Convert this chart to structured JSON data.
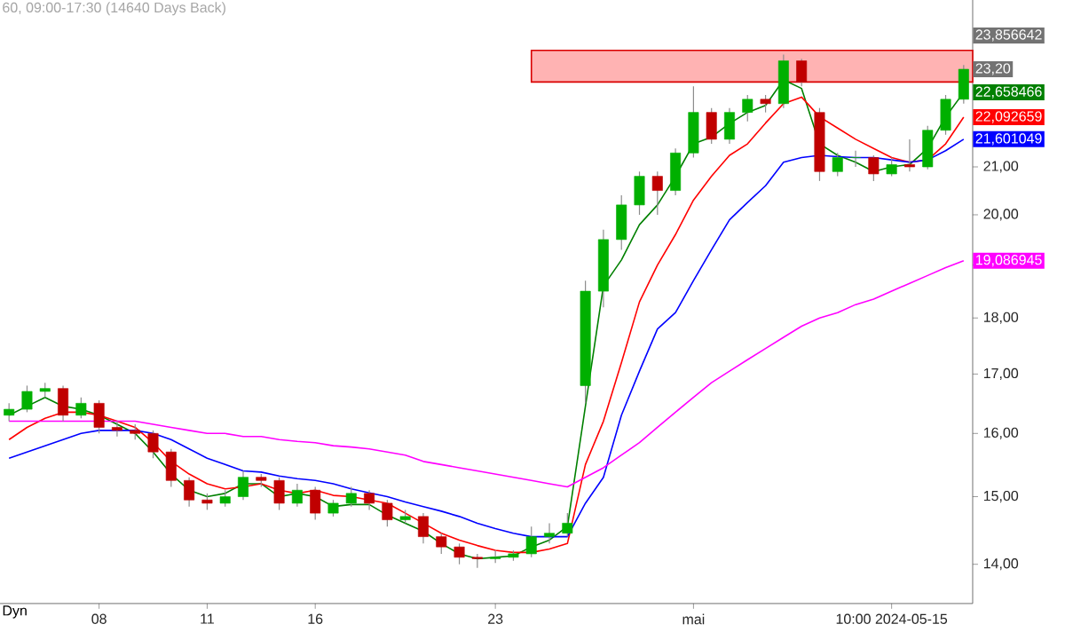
{
  "chart_data": {
    "type": "candlestick",
    "title": "60, 09:00-17:30 (14640 Days Back)",
    "categories": [
      null,
      null,
      null,
      null,
      null,
      "08",
      null,
      null,
      null,
      null,
      null,
      "11",
      null,
      null,
      null,
      null,
      null,
      "16",
      null,
      null,
      null,
      null,
      null,
      null,
      null,
      null,
      null,
      "23",
      null,
      null,
      null,
      null,
      null,
      null,
      null,
      null,
      null,
      null,
      "mai",
      null,
      null,
      null,
      null,
      null,
      null,
      null,
      null,
      null,
      null,
      "10:00 2024-05-15",
      null,
      null,
      null,
      null
    ],
    "ohlc": [
      [
        16.3,
        16.5,
        16.2,
        16.4
      ],
      [
        16.4,
        16.8,
        16.35,
        16.7
      ],
      [
        16.7,
        16.85,
        16.6,
        16.75
      ],
      [
        16.75,
        16.8,
        16.2,
        16.3
      ],
      [
        16.3,
        16.6,
        16.25,
        16.5
      ],
      [
        16.5,
        16.55,
        16.0,
        16.1
      ],
      [
        16.1,
        16.2,
        15.95,
        16.05
      ],
      [
        16.05,
        16.15,
        15.9,
        16.0
      ],
      [
        16.0,
        16.05,
        15.6,
        15.7
      ],
      [
        15.7,
        15.75,
        15.15,
        15.25
      ],
      [
        15.25,
        15.3,
        14.85,
        14.95
      ],
      [
        14.95,
        15.05,
        14.8,
        14.9
      ],
      [
        14.9,
        15.1,
        14.85,
        15.0
      ],
      [
        15.0,
        15.4,
        14.95,
        15.3
      ],
      [
        15.3,
        15.35,
        15.15,
        15.25
      ],
      [
        15.25,
        15.3,
        14.8,
        14.9
      ],
      [
        14.9,
        15.2,
        14.85,
        15.1
      ],
      [
        15.1,
        15.15,
        14.65,
        14.75
      ],
      [
        14.75,
        14.95,
        14.7,
        14.9
      ],
      [
        14.9,
        15.15,
        14.85,
        15.05
      ],
      [
        15.05,
        15.1,
        14.8,
        14.9
      ],
      [
        14.9,
        14.95,
        14.55,
        14.65
      ],
      [
        14.65,
        14.8,
        14.6,
        14.7
      ],
      [
        14.7,
        14.75,
        14.3,
        14.4
      ],
      [
        14.4,
        14.45,
        14.15,
        14.25
      ],
      [
        14.25,
        14.3,
        14.0,
        14.1
      ],
      [
        14.1,
        14.15,
        13.95,
        14.08
      ],
      [
        14.08,
        14.2,
        14.02,
        14.1
      ],
      [
        14.1,
        14.2,
        14.05,
        14.15
      ],
      [
        14.15,
        14.55,
        14.1,
        14.4
      ],
      [
        14.4,
        14.6,
        14.3,
        14.45
      ],
      [
        14.45,
        14.75,
        14.4,
        14.6
      ],
      [
        16.8,
        18.7,
        16.5,
        18.5
      ],
      [
        18.5,
        19.7,
        18.2,
        19.5
      ],
      [
        19.5,
        20.4,
        19.3,
        20.2
      ],
      [
        20.2,
        20.9,
        20.0,
        20.8
      ],
      [
        20.8,
        20.9,
        20.0,
        20.5
      ],
      [
        20.5,
        21.4,
        20.4,
        21.3
      ],
      [
        21.3,
        22.8,
        21.2,
        22.2
      ],
      [
        22.2,
        22.3,
        21.5,
        21.6
      ],
      [
        21.6,
        22.3,
        21.5,
        22.2
      ],
      [
        22.2,
        22.6,
        22.0,
        22.5
      ],
      [
        22.5,
        22.6,
        22.2,
        22.4
      ],
      [
        22.4,
        23.55,
        22.3,
        23.4
      ],
      [
        23.4,
        23.45,
        22.8,
        22.9
      ],
      [
        22.2,
        22.3,
        20.7,
        20.9
      ],
      [
        20.9,
        21.3,
        20.8,
        21.2
      ],
      [
        21.2,
        21.35,
        21.0,
        21.2
      ],
      [
        21.2,
        21.25,
        20.7,
        20.85
      ],
      [
        20.85,
        21.2,
        20.8,
        21.05
      ],
      [
        21.05,
        21.6,
        20.9,
        21.0
      ],
      [
        21.0,
        21.9,
        20.95,
        21.8
      ],
      [
        21.8,
        22.6,
        21.7,
        22.5
      ],
      [
        22.5,
        23.3,
        22.4,
        23.2
      ]
    ],
    "series": [
      {
        "type": "line",
        "color": "#008000",
        "values": [
          16.3,
          16.45,
          16.6,
          16.45,
          16.4,
          16.3,
          16.15,
          16.0,
          15.7,
          15.35,
          15.1,
          15.0,
          15.05,
          15.2,
          15.2,
          15.0,
          15.05,
          15.0,
          14.85,
          14.88,
          14.88,
          14.72,
          14.6,
          14.48,
          14.3,
          14.15,
          14.08,
          14.1,
          14.12,
          14.25,
          14.35,
          14.55,
          null,
          18.6,
          19.1,
          19.8,
          20.2,
          20.8,
          21.5,
          21.65,
          21.95,
          22.2,
          22.36,
          22.95,
          22.75,
          21.5,
          21.25,
          21.1,
          20.9,
          21.0,
          21.05,
          21.4,
          22.1,
          22.658466
        ],
        "value_labels": [
          null,
          null,
          null,
          null,
          null,
          null,
          null,
          null,
          null,
          null,
          null,
          null,
          null,
          null,
          null,
          null,
          null,
          null,
          null,
          null,
          null,
          null,
          null,
          null,
          null,
          null,
          null,
          null,
          null,
          null,
          null,
          null,
          null,
          null,
          null,
          null,
          null,
          null,
          null,
          null,
          null,
          null,
          null,
          null,
          null,
          null,
          null,
          null,
          null,
          null,
          null,
          null,
          null,
          "22,658466"
        ]
      },
      {
        "type": "line",
        "color": "#ff0000",
        "values": [
          15.9,
          16.1,
          16.25,
          16.35,
          16.35,
          16.3,
          16.2,
          16.1,
          15.85,
          15.55,
          15.35,
          15.2,
          15.12,
          15.15,
          15.2,
          15.1,
          15.05,
          15.1,
          15.02,
          15.0,
          14.95,
          14.9,
          14.75,
          14.6,
          14.45,
          14.35,
          14.27,
          14.2,
          14.17,
          14.17,
          14.22,
          14.3,
          15.5,
          16.2,
          17.2,
          18.3,
          19.0,
          19.6,
          20.3,
          20.8,
          21.25,
          21.5,
          21.96,
          22.4,
          22.55,
          22.1,
          21.85,
          21.6,
          21.4,
          21.2,
          21.1,
          21.15,
          21.5,
          22.092659
        ],
        "value_labels": [
          null,
          null,
          null,
          null,
          null,
          null,
          null,
          null,
          null,
          null,
          null,
          null,
          null,
          null,
          null,
          null,
          null,
          null,
          null,
          null,
          null,
          null,
          null,
          null,
          null,
          null,
          null,
          null,
          null,
          null,
          null,
          null,
          null,
          null,
          null,
          null,
          null,
          null,
          null,
          null,
          null,
          null,
          null,
          null,
          null,
          null,
          null,
          null,
          null,
          null,
          null,
          null,
          null,
          "22,092659"
        ]
      },
      {
        "type": "line",
        "color": "#0000ff",
        "values": [
          15.6,
          15.7,
          15.8,
          15.9,
          16.0,
          16.05,
          16.05,
          16.05,
          16.0,
          15.9,
          15.75,
          15.6,
          15.5,
          15.4,
          15.38,
          15.32,
          15.28,
          15.25,
          15.2,
          15.12,
          15.06,
          15.0,
          14.92,
          14.85,
          14.78,
          14.7,
          14.6,
          14.52,
          14.45,
          14.4,
          14.4,
          14.4,
          14.9,
          15.3,
          16.3,
          17.05,
          17.8,
          18.1,
          18.7,
          19.3,
          19.9,
          20.25,
          20.6,
          21.1,
          21.2,
          21.25,
          21.22,
          21.2,
          21.2,
          21.15,
          21.1,
          21.15,
          21.35,
          21.601049
        ],
        "value_labels": [
          null,
          null,
          null,
          null,
          null,
          null,
          null,
          null,
          null,
          null,
          null,
          null,
          null,
          null,
          null,
          null,
          null,
          null,
          null,
          null,
          null,
          null,
          null,
          null,
          null,
          null,
          null,
          null,
          null,
          null,
          null,
          null,
          null,
          null,
          null,
          null,
          null,
          null,
          null,
          null,
          null,
          null,
          null,
          null,
          null,
          null,
          null,
          null,
          null,
          null,
          null,
          null,
          null,
          "21,601049"
        ]
      },
      {
        "type": "line",
        "color": "#ff00ff",
        "values": [
          16.2,
          16.2,
          16.2,
          16.2,
          16.2,
          16.2,
          16.2,
          16.2,
          16.15,
          16.1,
          16.05,
          16.0,
          16.0,
          15.95,
          15.95,
          15.9,
          15.87,
          15.85,
          15.8,
          15.78,
          15.75,
          15.7,
          15.65,
          15.55,
          15.5,
          15.45,
          15.4,
          15.35,
          15.3,
          15.25,
          15.2,
          15.15,
          15.3,
          15.45,
          15.65,
          15.85,
          16.1,
          16.35,
          16.6,
          16.85,
          17.05,
          17.25,
          17.45,
          17.65,
          17.85,
          18.0,
          18.1,
          18.25,
          18.35,
          18.5,
          18.65,
          18.8,
          18.95,
          19.086945
        ],
        "value_labels": [
          null,
          null,
          null,
          null,
          null,
          null,
          null,
          null,
          null,
          null,
          null,
          null,
          null,
          null,
          null,
          null,
          null,
          null,
          null,
          null,
          null,
          null,
          null,
          null,
          null,
          null,
          null,
          null,
          null,
          null,
          null,
          null,
          null,
          null,
          null,
          null,
          null,
          null,
          null,
          null,
          null,
          null,
          null,
          null,
          null,
          null,
          null,
          null,
          null,
          null,
          null,
          null,
          null,
          "19,086945"
        ]
      }
    ],
    "annotations": [
      "23,856642",
      {
        "text": "23,20",
        "y": 23.2
      },
      "Dyn"
    ],
    "bands": [
      {
        "axis": "y",
        "from": 22.9,
        "to": 23.65,
        "color": "#ffb3b3"
      }
    ],
    "log": true,
    "ylim": [
      13.45,
      24.9
    ],
    "yticks": [
      {
        "value": 14,
        "label": "14,00"
      },
      {
        "value": 15,
        "label": "15,00"
      },
      {
        "value": 16,
        "label": "16,00"
      },
      {
        "value": 17,
        "label": "17,00"
      },
      {
        "value": 18,
        "label": "18,00"
      },
      {
        "value": 19,
        "label": null
      },
      {
        "value": 20,
        "label": "20,00"
      },
      {
        "value": 21,
        "label": "21,00"
      }
    ]
  }
}
